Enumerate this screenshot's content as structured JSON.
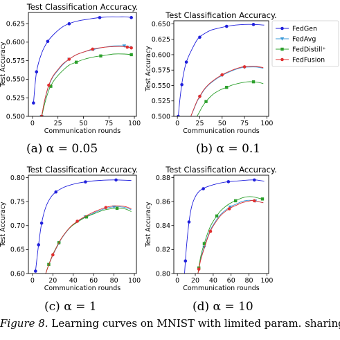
{
  "caption": {
    "label": "Figure 8.",
    "text": "Learning curves on MNIST with limited param. sharing."
  },
  "legend": {
    "position": "top-right",
    "entries": [
      {
        "name": "FedGen",
        "color": "#1f1fdc",
        "marker": "circle"
      },
      {
        "name": "FedAvg",
        "color": "#3a9ad9",
        "marker": "triangle-down"
      },
      {
        "name": "FedDistill⁺",
        "color": "#2ca02c",
        "marker": "square"
      },
      {
        "name": "FedFusion",
        "color": "#e03030",
        "marker": "circle"
      }
    ]
  },
  "chart_data": [
    {
      "type": "line",
      "subcaption": "(a) α = 0.05",
      "title": "Test Classification Accuracy.",
      "xlabel": "Communication rounds",
      "ylabel": "Test Accuracy",
      "xlim": [
        -4,
        102
      ],
      "ylim": [
        0.5,
        0.64
      ],
      "xticks": [
        0,
        25,
        50,
        75,
        100
      ],
      "yticks": [
        0.5,
        0.525,
        0.55,
        0.575,
        0.6,
        0.625
      ],
      "ytick_labels": [
        "0.500",
        "0.525",
        "0.550",
        "0.575",
        "0.600",
        "0.625"
      ],
      "series": [
        {
          "name": "FedGen",
          "x": [
            1,
            4,
            9,
            15,
            22,
            30,
            38,
            46,
            55,
            65,
            75,
            85,
            92,
            98
          ],
          "y": [
            0.518,
            0.56,
            0.585,
            0.601,
            0.612,
            0.621,
            0.626,
            0.629,
            0.631,
            0.633,
            0.634,
            0.634,
            0.634,
            0.633
          ],
          "markers": [
            1,
            4,
            15,
            36,
            66,
            97
          ]
        },
        {
          "name": "FedAvg",
          "x": [
            9,
            12,
            16,
            20,
            25,
            30,
            36,
            43,
            51,
            60,
            70,
            80,
            90,
            98
          ],
          "y": [
            0.5,
            0.521,
            0.541,
            0.553,
            0.562,
            0.57,
            0.577,
            0.583,
            0.587,
            0.59,
            0.593,
            0.595,
            0.595,
            0.594
          ],
          "markers": [
            9,
            36,
            60,
            90
          ]
        },
        {
          "name": "FedDistill⁺",
          "x": [
            9,
            12,
            16,
            20,
            25,
            30,
            36,
            43,
            51,
            60,
            70,
            80,
            90,
            98
          ],
          "y": [
            0.499,
            0.517,
            0.535,
            0.546,
            0.555,
            0.562,
            0.569,
            0.573,
            0.577,
            0.58,
            0.582,
            0.584,
            0.584,
            0.583
          ],
          "markers": [
            9,
            18,
            43,
            67,
            97
          ]
        },
        {
          "name": "FedFusion",
          "x": [
            9,
            12,
            16,
            20,
            25,
            30,
            36,
            43,
            51,
            60,
            70,
            80,
            90,
            98
          ],
          "y": [
            0.5,
            0.522,
            0.542,
            0.554,
            0.563,
            0.571,
            0.577,
            0.583,
            0.587,
            0.591,
            0.593,
            0.594,
            0.594,
            0.592
          ],
          "markers": [
            9,
            16,
            36,
            59,
            93,
            97
          ]
        }
      ]
    },
    {
      "type": "line",
      "subcaption": "(b) α = 0.1",
      "title": "Test Classification Accuracy.",
      "xlabel": "Communication rounds",
      "ylabel": "Test Accuracy",
      "xlim": [
        -4,
        102
      ],
      "ylim": [
        0.5,
        0.655
      ],
      "xticks": [
        0,
        25,
        50,
        75,
        100
      ],
      "yticks": [
        0.5,
        0.525,
        0.55,
        0.575,
        0.6,
        0.625,
        0.65
      ],
      "ytick_labels": [
        "0.500",
        "0.525",
        "0.550",
        "0.575",
        "0.600",
        "0.625",
        "0.650"
      ],
      "series": [
        {
          "name": "FedGen",
          "x": [
            1,
            3,
            6,
            10,
            16,
            23,
            30,
            38,
            46,
            55,
            65,
            75,
            85,
            97
          ],
          "y": [
            0.5,
            0.53,
            0.562,
            0.588,
            0.608,
            0.626,
            0.634,
            0.64,
            0.643,
            0.646,
            0.648,
            0.649,
            0.649,
            0.648
          ],
          "markers": [
            1,
            5,
            10,
            25,
            55,
            85
          ]
        },
        {
          "name": "FedAvg",
          "x": [
            15,
            18,
            22,
            26,
            30,
            35,
            40,
            46,
            52,
            58,
            65,
            72,
            80,
            88,
            96
          ],
          "y": [
            0.5,
            0.51,
            0.524,
            0.534,
            0.543,
            0.551,
            0.557,
            0.563,
            0.568,
            0.572,
            0.576,
            0.579,
            0.58,
            0.58,
            0.578
          ],
          "markers": [
            25,
            50,
            75
          ]
        },
        {
          "name": "FedDistill⁺",
          "x": [
            22,
            25,
            28,
            32,
            37,
            42,
            48,
            55,
            62,
            70,
            78,
            85,
            91,
            96
          ],
          "y": [
            0.5,
            0.508,
            0.516,
            0.524,
            0.532,
            0.538,
            0.543,
            0.547,
            0.551,
            0.554,
            0.556,
            0.556,
            0.555,
            0.553
          ],
          "markers": [
            32,
            55,
            85
          ]
        },
        {
          "name": "FedFusion",
          "x": [
            15,
            18,
            22,
            26,
            30,
            35,
            40,
            46,
            52,
            58,
            65,
            72,
            80,
            88,
            96
          ],
          "y": [
            0.5,
            0.511,
            0.525,
            0.535,
            0.544,
            0.552,
            0.558,
            0.564,
            0.569,
            0.573,
            0.577,
            0.58,
            0.581,
            0.581,
            0.579
          ],
          "markers": [
            25,
            50,
            75
          ]
        }
      ]
    },
    {
      "type": "line",
      "subcaption": "(c) α = 1",
      "title": "Test Classification Accuracy.",
      "xlabel": "Communication rounds",
      "ylabel": "Test Accuracy",
      "xlim": [
        -4,
        102
      ],
      "ylim": [
        0.6,
        0.805
      ],
      "xticks": [
        0,
        20,
        40,
        60,
        80,
        100
      ],
      "yticks": [
        0.6,
        0.65,
        0.7,
        0.75,
        0.8
      ],
      "ytick_labels": [
        "0.60",
        "0.65",
        "0.70",
        "0.75",
        "0.80"
      ],
      "series": [
        {
          "name": "FedGen",
          "x": [
            3,
            6,
            9,
            13,
            18,
            23,
            30,
            38,
            46,
            55,
            65,
            75,
            85,
            97
          ],
          "y": [
            0.605,
            0.66,
            0.705,
            0.738,
            0.759,
            0.77,
            0.779,
            0.785,
            0.789,
            0.792,
            0.794,
            0.795,
            0.795,
            0.794
          ],
          "markers": [
            3,
            6,
            9,
            23,
            52,
            82
          ]
        },
        {
          "name": "FedAvg",
          "x": [
            13,
            16,
            20,
            24,
            28,
            33,
            38,
            44,
            50,
            56,
            62,
            68,
            74,
            80,
            86,
            92,
            97
          ],
          "y": [
            0.6,
            0.618,
            0.638,
            0.655,
            0.671,
            0.686,
            0.698,
            0.708,
            0.716,
            0.722,
            0.728,
            0.733,
            0.737,
            0.739,
            0.739,
            0.737,
            0.733
          ],
          "markers": [
            26,
            52,
            80
          ]
        },
        {
          "name": "FedDistill⁺",
          "x": [
            13,
            16,
            20,
            24,
            28,
            33,
            38,
            44,
            50,
            56,
            62,
            68,
            74,
            80,
            86,
            92,
            97
          ],
          "y": [
            0.6,
            0.619,
            0.64,
            0.657,
            0.672,
            0.687,
            0.698,
            0.707,
            0.715,
            0.721,
            0.726,
            0.731,
            0.734,
            0.736,
            0.736,
            0.734,
            0.729
          ],
          "markers": [
            16,
            26,
            53,
            83
          ]
        },
        {
          "name": "FedFusion",
          "x": [
            13,
            16,
            20,
            24,
            28,
            33,
            38,
            44,
            50,
            56,
            62,
            68,
            74,
            80,
            86,
            92,
            97
          ],
          "y": [
            0.6,
            0.618,
            0.639,
            0.656,
            0.672,
            0.687,
            0.699,
            0.709,
            0.717,
            0.724,
            0.73,
            0.735,
            0.739,
            0.741,
            0.741,
            0.739,
            0.735
          ],
          "markers": [
            20,
            44,
            72
          ]
        }
      ]
    },
    {
      "type": "line",
      "subcaption": "(d) α = 10",
      "title": "Test Classification Accuracy.",
      "xlabel": "Communication rounds",
      "ylabel": "Test Accuracy",
      "xlim": [
        -4,
        102
      ],
      "ylim": [
        0.8,
        0.882
      ],
      "xticks": [
        0,
        20,
        40,
        60,
        80,
        100
      ],
      "yticks": [
        0.8,
        0.82,
        0.84,
        0.86,
        0.88
      ],
      "ytick_labels": [
        "0.80",
        "0.82",
        "0.84",
        "0.86",
        "0.88"
      ],
      "series": [
        {
          "name": "FedGen",
          "x": [
            8,
            10,
            13,
            16,
            20,
            25,
            32,
            40,
            48,
            56,
            64,
            72,
            80,
            88,
            97
          ],
          "y": [
            0.8,
            0.821,
            0.843,
            0.856,
            0.864,
            0.869,
            0.872,
            0.874,
            0.8755,
            0.8765,
            0.877,
            0.8775,
            0.878,
            0.878,
            0.877
          ],
          "markers": [
            9,
            13,
            29,
            57,
            86
          ]
        },
        {
          "name": "FedAvg",
          "x": [
            23,
            26,
            30,
            34,
            38,
            43,
            48,
            54,
            60,
            66,
            72,
            78,
            84,
            90,
            96
          ],
          "y": [
            0.8,
            0.812,
            0.822,
            0.831,
            0.838,
            0.844,
            0.849,
            0.853,
            0.856,
            0.858,
            0.86,
            0.861,
            0.861,
            0.86,
            0.859
          ],
          "markers": [
            30,
            59,
            87
          ]
        },
        {
          "name": "FedDistill⁺",
          "x": [
            23,
            26,
            30,
            34,
            38,
            43,
            48,
            54,
            60,
            66,
            72,
            78,
            84,
            90,
            96
          ],
          "y": [
            0.8,
            0.814,
            0.825,
            0.834,
            0.841,
            0.847,
            0.852,
            0.856,
            0.859,
            0.861,
            0.863,
            0.864,
            0.864,
            0.863,
            0.862
          ],
          "markers": [
            24,
            30,
            44,
            65,
            95
          ]
        },
        {
          "name": "FedFusion",
          "x": [
            23,
            26,
            30,
            34,
            38,
            43,
            48,
            54,
            60,
            66,
            72,
            78,
            84,
            90,
            96
          ],
          "y": [
            0.8,
            0.811,
            0.821,
            0.83,
            0.837,
            0.843,
            0.848,
            0.852,
            0.855,
            0.857,
            0.859,
            0.86,
            0.861,
            0.86,
            0.859
          ],
          "markers": [
            24,
            37,
            58,
            86
          ]
        }
      ]
    }
  ]
}
